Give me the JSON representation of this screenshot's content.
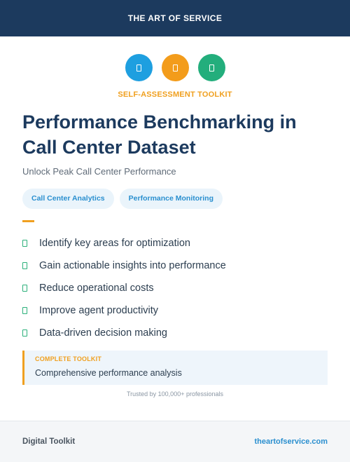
{
  "header": {
    "title": "THE ART OF SERVICE"
  },
  "icons": [
    {
      "name": "document-icon",
      "color": "#1e9fe0"
    },
    {
      "name": "document-icon",
      "color": "#f39c1b"
    },
    {
      "name": "document-icon",
      "color": "#23ae7c"
    }
  ],
  "kicker": "SELF-ASSESSMENT TOOLKIT",
  "title": "Performance Benchmarking in Call Center Dataset",
  "subtitle": "Unlock Peak Call Center Performance",
  "tags": [
    "Call Center Analytics",
    "Performance Monitoring"
  ],
  "accent_color": "#f0a020",
  "bullets": [
    "Identify key areas for optimization",
    "Gain actionable insights into performance",
    "Reduce operational costs",
    "Improve agent productivity",
    "Data-driven decision making"
  ],
  "callout": {
    "kicker": "COMPLETE TOOLKIT",
    "text": "Comprehensive performance analysis"
  },
  "trusted": "Trusted by 100,000+ professionals",
  "footer": {
    "left": "Digital Toolkit",
    "right": "theartofservice.com"
  }
}
